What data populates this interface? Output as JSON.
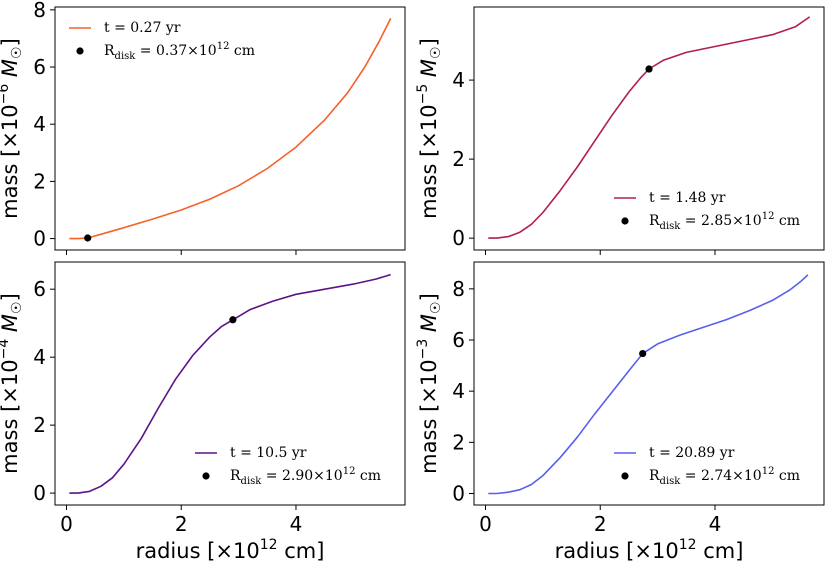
{
  "chart_data": [
    {
      "type": "line",
      "panel": "top-left",
      "ylabel": "mass [×10⁻⁶ M☉]",
      "ylabel_exp": "−6",
      "xlabel": "",
      "xlim": [
        -0.2,
        5.9
      ],
      "ylim": [
        -0.4,
        8.1
      ],
      "xticks": [],
      "yticks": [
        0,
        2,
        4,
        6,
        8
      ],
      "color": "#f4622a",
      "legend_loc": "upper-left",
      "legend": {
        "line": "t = 0.27 yr",
        "point": "R",
        "point_sub": "disk",
        "point_val": " = 0.37×10",
        "point_exp": "12",
        "point_unit": " cm"
      },
      "point": {
        "x": 0.37,
        "y": 0.02
      },
      "series": [
        {
          "name": "t = 0.27 yr",
          "x": [
            0.05,
            0.2,
            0.37,
            0.6,
            1.0,
            1.5,
            2.0,
            2.5,
            3.0,
            3.5,
            4.0,
            4.5,
            4.9,
            5.2,
            5.45,
            5.65
          ],
          "y": [
            0.0,
            0.0,
            0.02,
            0.15,
            0.38,
            0.68,
            1.0,
            1.38,
            1.85,
            2.45,
            3.2,
            4.15,
            5.1,
            6.0,
            6.9,
            7.7
          ]
        }
      ]
    },
    {
      "type": "line",
      "panel": "top-right",
      "ylabel": "mass [×10⁻⁵ M☉]",
      "ylabel_exp": "−5",
      "xlabel": "",
      "xlim": [
        -0.2,
        5.9
      ],
      "ylim": [
        -0.3,
        5.85
      ],
      "xticks": [],
      "yticks": [
        0,
        2,
        4
      ],
      "color": "#b31d50",
      "legend_loc": "lower-right",
      "legend": {
        "line": "t = 1.48 yr",
        "point": "R",
        "point_sub": "disk",
        "point_val": " = 2.85×10",
        "point_exp": "12",
        "point_unit": " cm"
      },
      "point": {
        "x": 2.85,
        "y": 4.28
      },
      "series": [
        {
          "name": "t = 1.48 yr",
          "x": [
            0.05,
            0.2,
            0.4,
            0.6,
            0.8,
            1.0,
            1.3,
            1.6,
            1.9,
            2.2,
            2.5,
            2.7,
            2.85,
            3.1,
            3.5,
            4.0,
            4.5,
            5.0,
            5.4,
            5.65
          ],
          "y": [
            0.0,
            0.0,
            0.04,
            0.15,
            0.35,
            0.65,
            1.2,
            1.8,
            2.45,
            3.1,
            3.7,
            4.05,
            4.28,
            4.5,
            4.7,
            4.85,
            5.0,
            5.15,
            5.35,
            5.6
          ]
        }
      ]
    },
    {
      "type": "line",
      "panel": "bottom-left",
      "ylabel": "mass [×10⁻⁴ M☉]",
      "ylabel_exp": "−4",
      "xlabel": "radius [×10¹² cm]",
      "xlabel_exp": "12",
      "xlim": [
        -0.2,
        5.9
      ],
      "ylim": [
        -0.35,
        6.8
      ],
      "xticks": [
        0,
        2,
        4
      ],
      "yticks": [
        0,
        2,
        4,
        6
      ],
      "color": "#5a1486",
      "legend_loc": "lower-right",
      "legend": {
        "line": "t = 10.5 yr",
        "point": "R",
        "point_sub": "disk",
        "point_val": " = 2.90×10",
        "point_exp": "12",
        "point_unit": " cm"
      },
      "point": {
        "x": 2.9,
        "y": 5.1
      },
      "series": [
        {
          "name": "t = 10.5 yr",
          "x": [
            0.05,
            0.2,
            0.4,
            0.6,
            0.8,
            1.0,
            1.3,
            1.6,
            1.9,
            2.2,
            2.5,
            2.7,
            2.9,
            3.2,
            3.6,
            4.0,
            4.5,
            5.0,
            5.4,
            5.65
          ],
          "y": [
            0.0,
            0.0,
            0.05,
            0.2,
            0.45,
            0.85,
            1.6,
            2.5,
            3.35,
            4.05,
            4.6,
            4.9,
            5.1,
            5.4,
            5.65,
            5.85,
            6.0,
            6.15,
            6.3,
            6.43
          ]
        }
      ]
    },
    {
      "type": "line",
      "panel": "bottom-right",
      "ylabel": "mass [×10⁻³ M☉]",
      "ylabel_exp": "−3",
      "xlabel": "radius [×10¹² cm]",
      "xlabel_exp": "12",
      "xlim": [
        -0.2,
        5.9
      ],
      "ylim": [
        -0.45,
        9.05
      ],
      "xticks": [
        0,
        2,
        4
      ],
      "yticks": [
        0,
        2,
        4,
        6,
        8
      ],
      "color": "#5a5ef0",
      "legend_loc": "lower-right",
      "legend": {
        "line": "t = 20.89 yr",
        "point": "R",
        "point_sub": "disk",
        "point_val": " = 2.74×10",
        "point_exp": "12",
        "point_unit": " cm"
      },
      "point": {
        "x": 2.74,
        "y": 5.47
      },
      "series": [
        {
          "name": "t = 20.89 yr",
          "x": [
            0.05,
            0.2,
            0.4,
            0.6,
            0.8,
            1.0,
            1.3,
            1.6,
            1.9,
            2.2,
            2.5,
            2.74,
            3.0,
            3.4,
            3.8,
            4.2,
            4.6,
            5.0,
            5.3,
            5.5,
            5.62
          ],
          "y": [
            0.0,
            0.0,
            0.05,
            0.15,
            0.35,
            0.7,
            1.4,
            2.2,
            3.1,
            3.95,
            4.8,
            5.47,
            5.85,
            6.2,
            6.5,
            6.8,
            7.15,
            7.55,
            7.95,
            8.3,
            8.55
          ]
        }
      ]
    }
  ]
}
